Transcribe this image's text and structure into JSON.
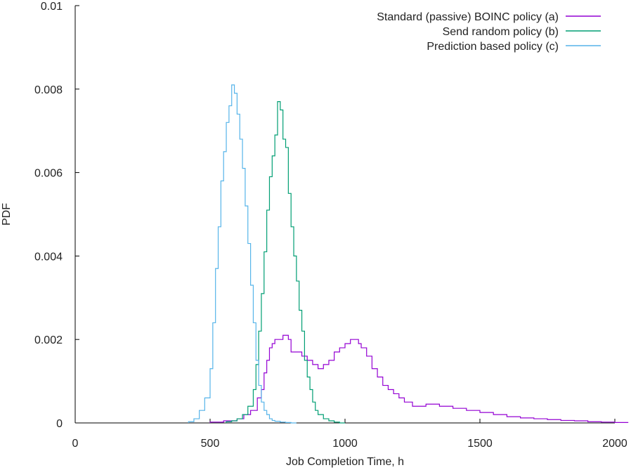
{
  "chart_data": {
    "type": "line",
    "style": "step-histogram",
    "title": "",
    "xlabel": "Job Completion Time, h",
    "ylabel": "PDF",
    "xlim": [
      0,
      2000
    ],
    "ylim": [
      0,
      0.01
    ],
    "grid": false,
    "legend_position": "top-right",
    "x_ticks": [
      0,
      500,
      1000,
      1500,
      2000
    ],
    "y_ticks": [
      0,
      0.002,
      0.004,
      0.006,
      0.008,
      0.01
    ],
    "x_tick_labels": [
      "0",
      "500",
      "1000",
      "1500",
      "2000"
    ],
    "y_tick_labels": [
      "0",
      "0.002",
      "0.004",
      "0.006",
      "0.008",
      "0.01"
    ],
    "series": [
      {
        "name": "Standard (passive) BOINC policy (a)",
        "color": "#9400d3",
        "x": [
          500,
          550,
          600,
          625,
          650,
          675,
          690,
          700,
          710,
          720,
          730,
          740,
          750,
          760,
          770,
          780,
          790,
          800,
          820,
          840,
          860,
          880,
          900,
          920,
          940,
          960,
          980,
          1000,
          1020,
          1040,
          1050,
          1060,
          1080,
          1100,
          1120,
          1140,
          1160,
          1180,
          1200,
          1220,
          1250,
          1300,
          1350,
          1400,
          1450,
          1500,
          1550,
          1600,
          1650,
          1700,
          1750,
          1800,
          1850,
          1900,
          1950,
          2000
        ],
        "values": [
          2e-05,
          5e-05,
          0.0001,
          0.0002,
          0.0003,
          0.0006,
          0.0008,
          0.0012,
          0.0015,
          0.0018,
          0.0019,
          0.002,
          0.002,
          0.002,
          0.0021,
          0.0021,
          0.002,
          0.0017,
          0.0017,
          0.0016,
          0.0015,
          0.0014,
          0.0013,
          0.0014,
          0.0015,
          0.0017,
          0.0018,
          0.0019,
          0.002,
          0.002,
          0.0019,
          0.0018,
          0.0016,
          0.0013,
          0.0011,
          0.0009,
          0.0008,
          0.0007,
          0.0006,
          0.0005,
          0.0004,
          0.00045,
          0.0004,
          0.00035,
          0.0003,
          0.00025,
          0.0002,
          0.00015,
          0.00012,
          0.0001,
          8e-05,
          6e-05,
          5e-05,
          3e-05,
          2e-05,
          1e-05
        ]
      },
      {
        "name": "Send random policy (b)",
        "color": "#009e73",
        "x": [
          560,
          580,
          600,
          620,
          640,
          660,
          670,
          680,
          690,
          700,
          710,
          720,
          730,
          740,
          750,
          760,
          770,
          780,
          790,
          800,
          810,
          820,
          830,
          840,
          850,
          860,
          870,
          880,
          890,
          900,
          920,
          940,
          960,
          980
        ],
        "values": [
          3e-05,
          5e-05,
          0.0001,
          0.0002,
          0.0004,
          0.0008,
          0.0014,
          0.0022,
          0.0031,
          0.0041,
          0.0051,
          0.0059,
          0.0064,
          0.0069,
          0.0077,
          0.0075,
          0.0068,
          0.0066,
          0.0055,
          0.0047,
          0.004,
          0.0034,
          0.0027,
          0.0022,
          0.0015,
          0.0011,
          0.0008,
          0.0005,
          0.0003,
          0.0002,
          0.0001,
          5e-05,
          2e-05,
          0.0
        ]
      },
      {
        "name": "Prediction based policy (c)",
        "color": "#56b4e9",
        "x": [
          420,
          440,
          460,
          480,
          500,
          510,
          520,
          530,
          540,
          550,
          560,
          570,
          580,
          590,
          600,
          610,
          620,
          630,
          640,
          650,
          660,
          670,
          680,
          690,
          700,
          710,
          720,
          730,
          740,
          760,
          780,
          800
        ],
        "values": [
          3e-05,
          0.0001,
          0.0003,
          0.0006,
          0.0013,
          0.0024,
          0.0037,
          0.0047,
          0.0058,
          0.0065,
          0.0072,
          0.0076,
          0.0081,
          0.0079,
          0.0074,
          0.0068,
          0.0061,
          0.0052,
          0.0043,
          0.0033,
          0.0024,
          0.0015,
          0.0009,
          0.0005,
          0.0003,
          0.0002,
          0.0001,
          6e-05,
          4e-05,
          2e-05,
          1e-05,
          0.0
        ]
      }
    ]
  }
}
